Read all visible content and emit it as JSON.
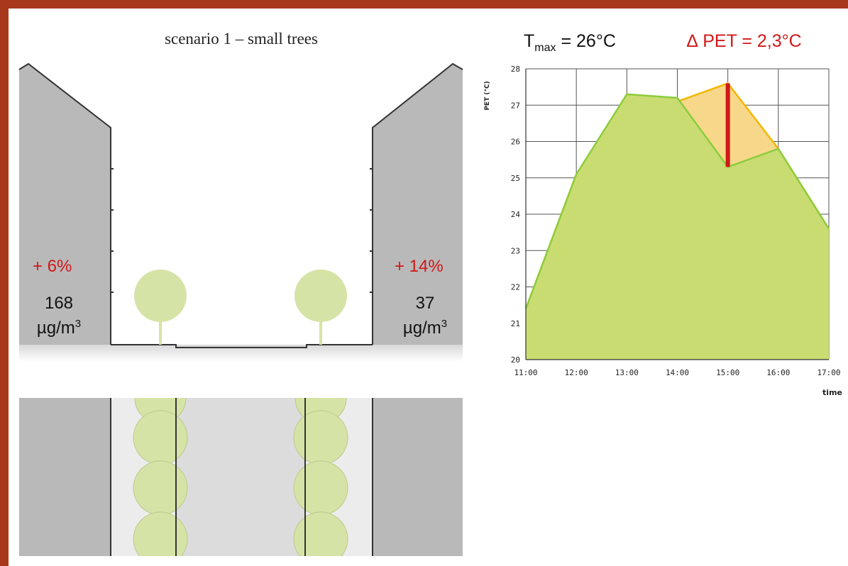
{
  "scenario_title": "scenario 1 – small trees",
  "left_building": {
    "change": "+ 6%",
    "value": "168",
    "unit_base": "µg/m",
    "unit_exp": "3"
  },
  "right_building": {
    "change": "+ 14%",
    "value": "37",
    "unit_base": "µg/m",
    "unit_exp": "3"
  },
  "tmax": {
    "symbol": "T",
    "subscript": "max",
    "value_text": "= 26°C"
  },
  "delta_pet": {
    "text": "∆ PET = 2,3°C"
  },
  "colors": {
    "frame": "#a8381c",
    "building": "#b9b9b9",
    "tree": "#d6e3a6",
    "highlight": "#d01818",
    "area_green": "#c9dc72",
    "line_green": "#8ccc3c",
    "area_orange": "#f7d88a",
    "line_orange": "#f2b700"
  },
  "chart_data": {
    "type": "area",
    "ylabel": "PET (°C)",
    "xlabel": "time",
    "x": [
      "11:00",
      "12:00",
      "13:00",
      "14:00",
      "15:00",
      "16:00",
      "17:00"
    ],
    "y_ticks": [
      "20",
      "21",
      "22",
      "23",
      "24",
      "25",
      "26",
      "27",
      "28"
    ],
    "ylim": [
      20,
      28
    ],
    "grid": true,
    "series": [
      {
        "values": [
          21.4,
          25.1,
          27.2,
          27.1,
          27.6,
          25.8,
          23.6
        ],
        "color": "orange"
      },
      {
        "values": [
          21.4,
          25.1,
          27.3,
          27.2,
          25.3,
          25.8,
          23.6
        ],
        "color": "green"
      }
    ],
    "difference_marker": {
      "x": "15:00",
      "from": 25.3,
      "to": 27.6
    }
  }
}
